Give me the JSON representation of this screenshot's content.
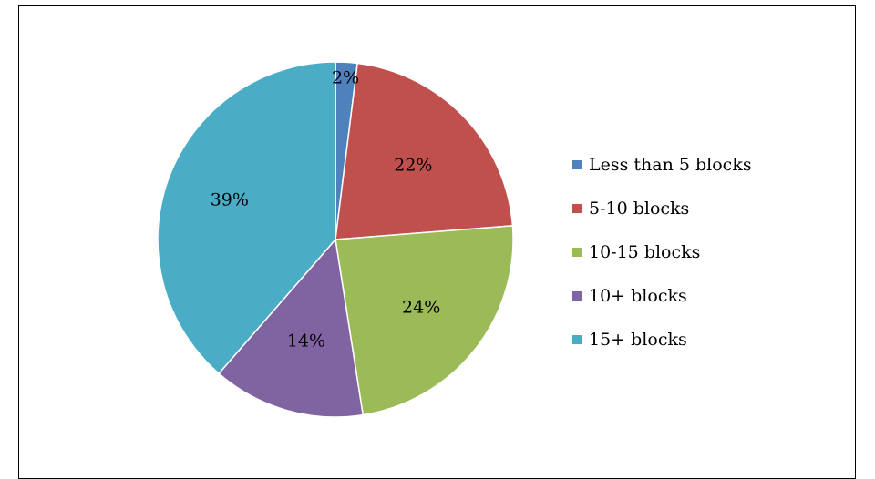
{
  "chart_data": {
    "type": "pie",
    "title": "",
    "categories": [
      "Less than 5 blocks",
      "5-10 blocks",
      "10-15 blocks",
      "10+ blocks",
      "15+ blocks"
    ],
    "values": [
      2,
      22,
      24,
      14,
      39
    ],
    "data_labels": [
      "2%",
      "22%",
      "24%",
      "14%",
      "39%"
    ],
    "colors": [
      "#4F81BD",
      "#C0504D",
      "#9BBB59",
      "#8064A2",
      "#4BACC6"
    ],
    "start_angle_deg": 0,
    "direction": "clockwise",
    "legend_position": "right"
  }
}
